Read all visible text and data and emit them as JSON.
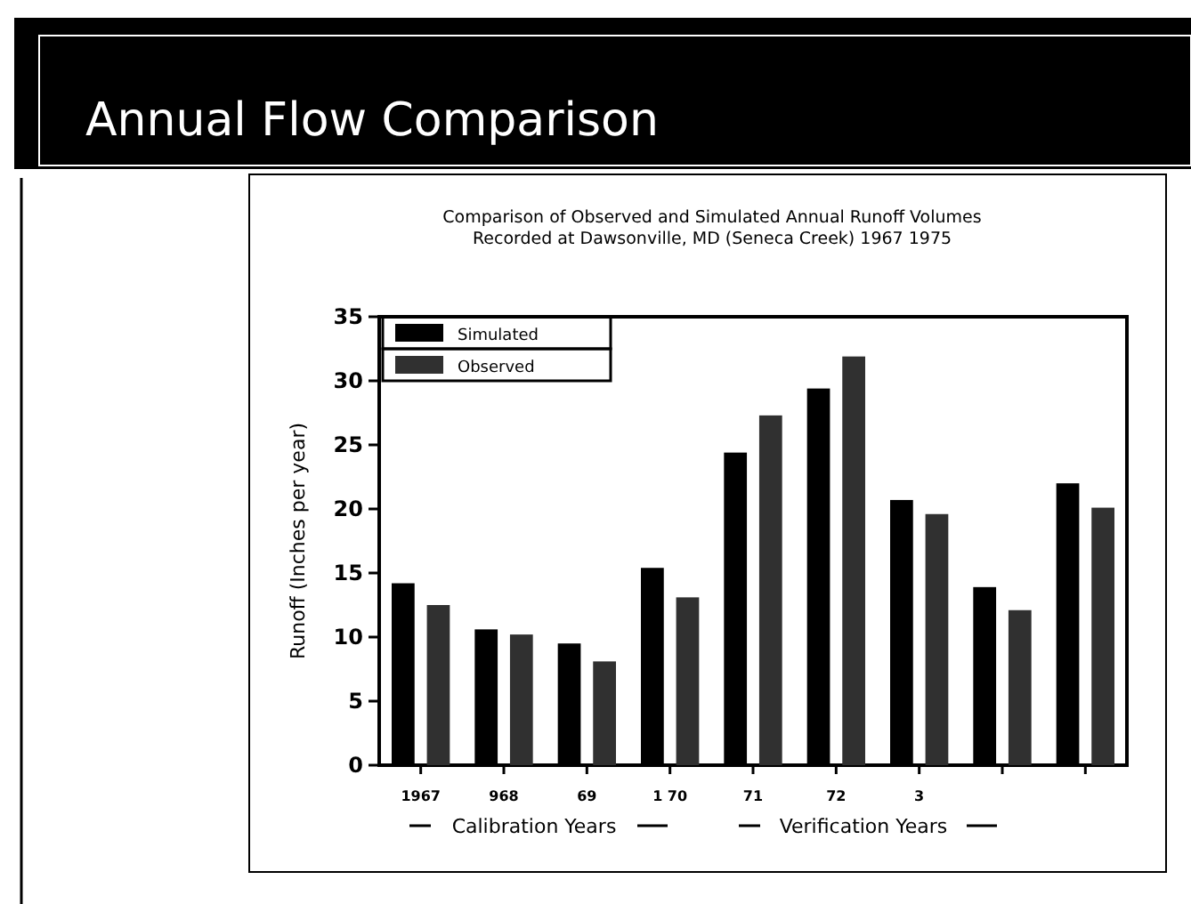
{
  "chart_data": {
    "type": "bar",
    "title": "Annual Flow Comparison",
    "subtitle": "Comparison of Observed and Simulated Annual Runoff Volumes\nRecorded at Dawsonville, MD (Seneca Creek) 1967   1975",
    "ylabel": "Runoff (Inches per year)",
    "categories": [
      "1967",
      "968",
      "69",
      "1 70",
      "71",
      "72",
      "3",
      null,
      null
    ],
    "series": [
      {
        "name": "Simulated",
        "color": "#000000",
        "values": [
          14.2,
          10.6,
          9.5,
          15.4,
          24.4,
          29.4,
          20.7,
          13.9,
          22.0
        ]
      },
      {
        "name": "Observed",
        "color": "#303030",
        "values": [
          12.5,
          10.2,
          8.1,
          13.1,
          27.3,
          31.9,
          19.6,
          12.1,
          20.1
        ]
      }
    ],
    "ylim": [
      0,
      35
    ],
    "yticks": [
      0,
      5,
      10,
      15,
      20,
      25,
      30,
      35
    ],
    "grid": false,
    "legend": "top left",
    "annotations": [
      "Calibration Years",
      "Verification Years"
    ]
  }
}
